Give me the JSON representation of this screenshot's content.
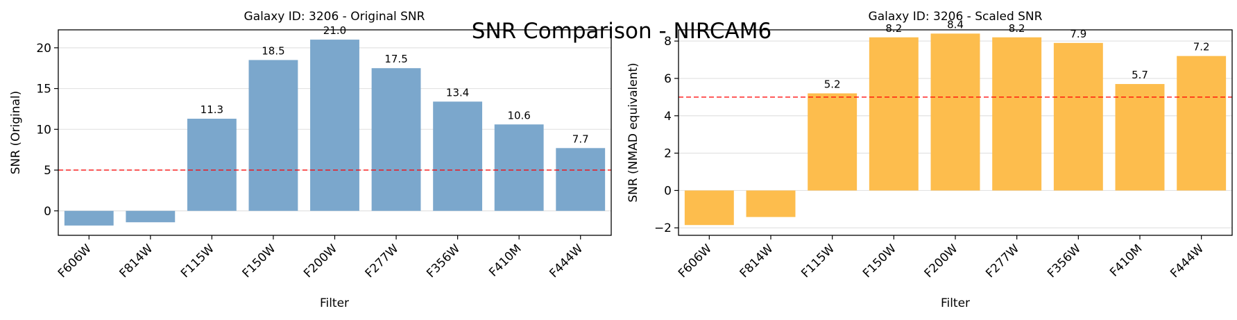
{
  "suptitle": "SNR Comparison - NIRCAM6",
  "threshold_color": "#ff0000",
  "chart_data": [
    {
      "type": "bar",
      "title": "Galaxy ID: 3206 - Original SNR",
      "xlabel": "Filter",
      "ylabel": "SNR (Original)",
      "categories": [
        "F606W",
        "F814W",
        "F115W",
        "F150W",
        "F200W",
        "F277W",
        "F356W",
        "F410M",
        "F444W"
      ],
      "values": [
        -1.8,
        -1.4,
        11.3,
        18.5,
        21.0,
        17.5,
        13.4,
        10.6,
        7.7
      ],
      "value_labels": [
        "",
        "",
        "11.3",
        "18.5",
        "21.0",
        "17.5",
        "13.4",
        "10.6",
        "7.7"
      ],
      "ylim": [
        -3.0,
        22.2
      ],
      "yticks": [
        0,
        5,
        10,
        15,
        20
      ],
      "threshold": 5,
      "color": "#7ba7cc",
      "grid": "y"
    },
    {
      "type": "bar",
      "title": "Galaxy ID: 3206 - Scaled SNR",
      "xlabel": "Filter",
      "ylabel": "SNR (NMAD equivalent)",
      "categories": [
        "F606W",
        "F814W",
        "F115W",
        "F150W",
        "F200W",
        "F277W",
        "F356W",
        "F410M",
        "F444W"
      ],
      "values": [
        -1.85,
        -1.42,
        5.2,
        8.2,
        8.4,
        8.2,
        7.9,
        5.7,
        7.2
      ],
      "value_labels": [
        "",
        "",
        "5.2",
        "8.2",
        "8.4",
        "8.2",
        "7.9",
        "5.7",
        "7.2"
      ],
      "ylim": [
        -2.4,
        8.6
      ],
      "yticks": [
        -2,
        0,
        2,
        4,
        6,
        8
      ],
      "threshold": 5,
      "color": "#fdbd4d",
      "grid": "y"
    }
  ]
}
